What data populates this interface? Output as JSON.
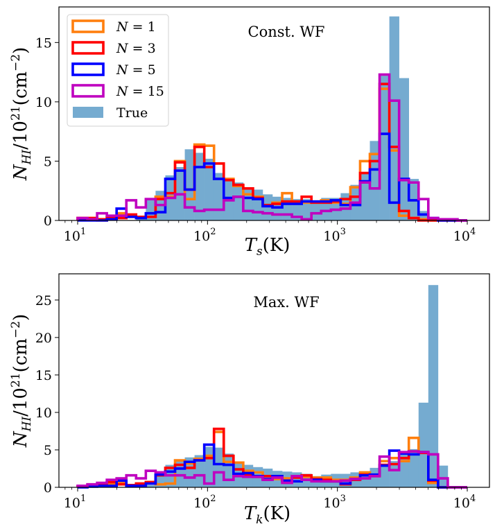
{
  "chart_data": [
    {
      "type": "bar",
      "subtype": "histogram-step",
      "annotation": "Const. WF",
      "xlabel": "T_s(K)",
      "ylabel": "N_HI/10^21(cm^-2)",
      "xscale": "log",
      "xlim": [
        10,
        10000
      ],
      "ylim": [
        0,
        18
      ],
      "xticks": [
        "10^1",
        "10^2",
        "10^3",
        "10^4"
      ],
      "yticks": [
        0,
        5,
        10,
        15
      ],
      "bin_edges_log10": {
        "start": 1.0,
        "stop": 4.0,
        "nbins": 40
      },
      "legend": {
        "placement": "top-left",
        "entries": [
          "N=1",
          "N=3",
          "N=5",
          "N=15",
          "True"
        ]
      },
      "series": [
        {
          "name": "True",
          "style": "filled",
          "color": "#75abd0",
          "values": [
            0,
            0,
            0,
            0,
            0,
            0,
            0.1,
            1.8,
            2.5,
            3.8,
            4.5,
            6.0,
            5.7,
            5.2,
            4.0,
            3.5,
            3.2,
            2.8,
            2.6,
            2.2,
            2.0,
            1.9,
            1.8,
            1.8,
            1.6,
            1.9,
            1.9,
            2.3,
            3.0,
            4.0,
            6.7,
            12.2,
            17.2,
            12.0,
            3.5,
            0.8,
            0.1,
            0,
            0,
            0
          ]
        },
        {
          "name": "N=1",
          "style": "step",
          "color": "#ff7f0e",
          "values": [
            0.2,
            0.2,
            0,
            0.3,
            0.6,
            0.3,
            0.3,
            0.3,
            2.0,
            2.0,
            5.0,
            1.8,
            6.4,
            6.3,
            4.8,
            3.5,
            2.9,
            2.2,
            2.0,
            1.3,
            1.5,
            2.3,
            1.5,
            1.5,
            1.6,
            1.7,
            1.5,
            1.4,
            2.8,
            5.0,
            5.6,
            11.1,
            5.9,
            0.4,
            0.2,
            0.1,
            0,
            0,
            0,
            0
          ]
        },
        {
          "name": "N=3",
          "style": "step",
          "color": "#ff0000",
          "values": [
            0.2,
            0.2,
            0.1,
            0.3,
            0.2,
            0.5,
            0.3,
            0.3,
            1.8,
            2.3,
            4.9,
            2.6,
            6.2,
            4.5,
            4.8,
            3.4,
            3.0,
            2.7,
            1.9,
            1.3,
            1.4,
            1.6,
            1.6,
            2.0,
            1.5,
            1.5,
            1.6,
            1.8,
            2.0,
            4.0,
            5.0,
            11.5,
            6.2,
            0.8,
            0.2,
            0,
            0,
            0,
            0,
            0
          ]
        },
        {
          "name": "N=5",
          "style": "step",
          "color": "#0000ff",
          "values": [
            0,
            0,
            0,
            0.1,
            1.0,
            0.3,
            0.2,
            0.6,
            0.7,
            3.5,
            4.2,
            2.6,
            4.5,
            4.8,
            3.5,
            1.9,
            2.0,
            1.9,
            1.8,
            1.2,
            1.1,
            1.4,
            1.4,
            1.6,
            1.6,
            1.6,
            1.7,
            1.3,
            1.3,
            3.3,
            4.3,
            7.3,
            1.5,
            3.5,
            1.7,
            0.5,
            0.2,
            0,
            0,
            0
          ]
        },
        {
          "name": "N=15",
          "style": "step",
          "color": "#bf00bf",
          "values": [
            0.2,
            0.1,
            0.6,
            0.4,
            0.4,
            1.7,
            1.1,
            1.8,
            1.3,
            1.9,
            2.2,
            1.1,
            0.8,
            0.9,
            0.9,
            1.7,
            2.0,
            0.8,
            0.7,
            0.6,
            0.5,
            0.5,
            0.3,
            0.1,
            0.6,
            0.8,
            0.9,
            1.0,
            1.5,
            3.2,
            2.7,
            12.3,
            10.1,
            3.4,
            3.2,
            1.8,
            0.2,
            0.1,
            0.1,
            0
          ]
        }
      ]
    },
    {
      "type": "bar",
      "subtype": "histogram-step",
      "annotation": "Max. WF",
      "xlabel": "T_k(K)",
      "ylabel": "N_HI/10^21(cm^-2)",
      "xscale": "log",
      "xlim": [
        10,
        10000
      ],
      "ylim": [
        0,
        28.5
      ],
      "xticks": [
        "10^1",
        "10^2",
        "10^3",
        "10^4"
      ],
      "yticks": [
        0,
        5,
        10,
        15,
        20,
        25
      ],
      "bin_edges_log10": {
        "start": 1.0,
        "stop": 4.0,
        "nbins": 40
      },
      "series": [
        {
          "name": "True",
          "style": "filled",
          "color": "#75abd0",
          "values": [
            0,
            0,
            0,
            0,
            0,
            0,
            0,
            0.3,
            1.5,
            3.0,
            3.7,
            4.0,
            4.3,
            5.4,
            5.3,
            4.5,
            3.2,
            3.0,
            2.7,
            2.5,
            2.2,
            2.1,
            2.0,
            1.8,
            1.5,
            1.7,
            1.8,
            1.8,
            2.0,
            2.0,
            2.6,
            3.0,
            3.5,
            4.5,
            5.1,
            11.3,
            27.0,
            2.9,
            0,
            0
          ]
        },
        {
          "name": "N=1",
          "style": "step",
          "color": "#ff7f0e",
          "values": [
            0.1,
            0.2,
            0.3,
            0.4,
            0.7,
            0.2,
            0.5,
            0.7,
            0.4,
            0.5,
            3.6,
            3.2,
            3.8,
            4.2,
            7.4,
            3.4,
            3.3,
            2.2,
            2.0,
            1.5,
            1.1,
            1.2,
            1.5,
            1.4,
            1.3,
            1.3,
            1.0,
            1.0,
            1.3,
            2.0,
            1.6,
            3.5,
            3.9,
            3.5,
            6.6,
            4.7,
            0.6,
            0,
            0,
            0
          ]
        },
        {
          "name": "N=3",
          "style": "step",
          "color": "#ff0000",
          "values": [
            0.1,
            0.2,
            0.3,
            0.7,
            0.4,
            0.3,
            0.5,
            0.7,
            1.6,
            2.6,
            3.0,
            2.6,
            3.6,
            3.9,
            7.8,
            4.2,
            2.4,
            1.7,
            1.4,
            1.5,
            1.5,
            0.8,
            1.3,
            1.6,
            1.1,
            1.0,
            0.8,
            0.4,
            1.0,
            1.7,
            1.5,
            3.0,
            3.1,
            3.9,
            4.8,
            4.6,
            0.9,
            0,
            0,
            0
          ]
        },
        {
          "name": "N=5",
          "style": "step",
          "color": "#0000ff",
          "values": [
            0,
            0.1,
            0.2,
            0.2,
            0.9,
            0.2,
            0.2,
            0.5,
            1.7,
            2.1,
            2.5,
            3.4,
            3.6,
            5.7,
            3.1,
            3.0,
            1.8,
            1.9,
            1.5,
            1.1,
            1.5,
            0.9,
            0.8,
            1.0,
            1.0,
            0.8,
            0.8,
            0.5,
            1.1,
            1.6,
            1.7,
            2.9,
            4.9,
            4.5,
            4.4,
            4.7,
            1.0,
            0,
            0,
            0
          ]
        },
        {
          "name": "N=15",
          "style": "step",
          "color": "#bf00bf",
          "values": [
            0.2,
            0.4,
            0.6,
            1.0,
            1.2,
            1.6,
            1.2,
            2.2,
            2.0,
            1.6,
            1.6,
            1.3,
            1.6,
            0.5,
            2.0,
            1.0,
            1.5,
            1.4,
            1.4,
            1.0,
            1.3,
            0.6,
            1.5,
            1.0,
            0.8,
            0.8,
            0.8,
            0.9,
            1.1,
            1.2,
            1.5,
            4.1,
            2.3,
            4.7,
            4.8,
            4.7,
            4.4,
            1.2,
            0,
            0
          ]
        }
      ]
    }
  ]
}
